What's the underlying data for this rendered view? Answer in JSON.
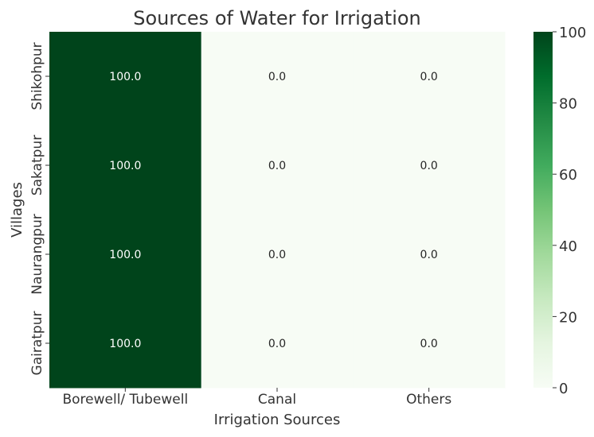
{
  "chart_data": {
    "type": "heatmap",
    "title": "Sources of Water for Irrigation",
    "xlabel": "Irrigation Sources",
    "ylabel": "Villages",
    "x_categories": [
      "Borewell/ Tubewell",
      "Canal",
      "Others"
    ],
    "y_categories": [
      "Shikohpur",
      "Sakatpur",
      "Naurangpur",
      "Gairatpur"
    ],
    "values": [
      [
        100.0,
        0.0,
        0.0
      ],
      [
        100.0,
        0.0,
        0.0
      ],
      [
        100.0,
        0.0,
        0.0
      ],
      [
        100.0,
        0.0,
        0.0
      ]
    ],
    "value_format": "0.0",
    "colormap": "Greens",
    "color_low": "#f7fcf5",
    "color_high": "#00441b",
    "colorbar": {
      "range": [
        0,
        100
      ],
      "ticks": [
        0,
        20,
        40,
        60,
        80,
        100
      ]
    },
    "grid": false,
    "legend": "colorbar-right"
  }
}
